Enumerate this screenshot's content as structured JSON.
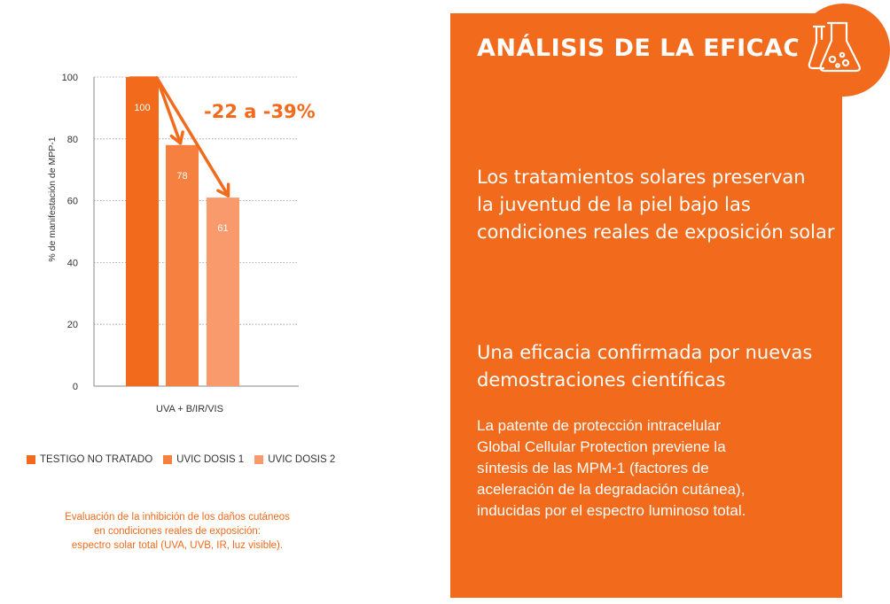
{
  "chart_data": {
    "type": "bar",
    "ylabel": "% de manifestación de MPP-1",
    "xlabel": "UVA + B/IR/VIS",
    "ylim": [
      0,
      100
    ],
    "yticks": [
      0,
      20,
      40,
      60,
      80,
      100
    ],
    "grid": true,
    "series": [
      {
        "name": "TESTIGO NO TRATADO",
        "value": 100,
        "label": "100",
        "color": "#f26a1b"
      },
      {
        "name": "UVIC DOSIS 1",
        "value": 78,
        "label": "78",
        "color": "#f5803f"
      },
      {
        "name": "UVIC DOSIS 2",
        "value": 61,
        "label": "61",
        "color": "#f89a6c"
      }
    ],
    "annotation": "-22 a -39%",
    "legend_position": "bottom"
  },
  "caption": {
    "line1": "Evaluación de la inhibición de los daños cutáneos",
    "line2": "en condiciones reales de exposición:",
    "line3": "espectro solar total (UVA, UVB, IR, luz visible)."
  },
  "panel": {
    "title": "ANÁLISIS DE LA EFICACIA",
    "icon": "flask-icon",
    "lead1": "Los tratamientos solares preservan",
    "lead2": "la juventud de la piel bajo las",
    "lead3": "condiciones reales de exposición solar",
    "sub1": "Una eficacia confirmada por nuevas",
    "sub2": "demostraciones científicas",
    "body1": "La patente de protección intracelular",
    "body2": "Global Cellular Protection previene la",
    "body3": "síntesis de las MPM-1 (factores de",
    "body4": "aceleración de la degradación cutánea),",
    "body5": "inducidas por el espectro luminoso total."
  },
  "colors": {
    "accent": "#f26a1b",
    "dose1": "#f5803f",
    "dose2": "#f89a6c"
  }
}
